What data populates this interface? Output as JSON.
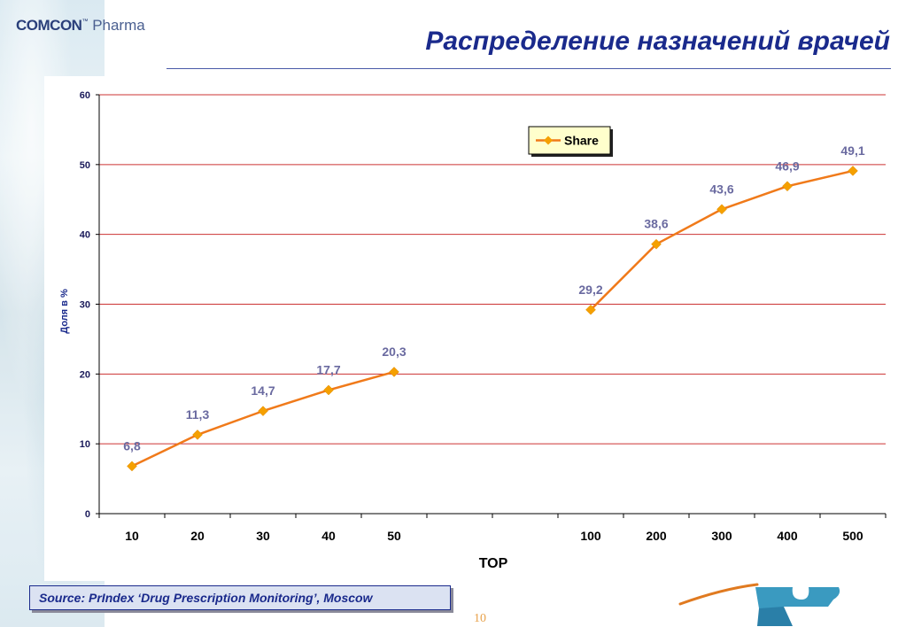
{
  "header": {
    "logo_brand": "COMCON",
    "logo_tm": "™",
    "logo_sub": "Pharma",
    "title": "Распределение назначений врачей"
  },
  "footer": {
    "source": "Source: PrIndex ‘Drug Prescription Monitoring’, Moscow",
    "page_number": "10"
  },
  "colors": {
    "title": "#1a2a8c",
    "series_line": "#f07a1a",
    "series_marker": "#f5a000",
    "gridline": "#cc3333",
    "data_label": "#6a6aa0"
  },
  "chart_data": {
    "type": "line",
    "title": "",
    "xlabel": "TOP",
    "ylabel": "Доля в %",
    "ylim": [
      0,
      60
    ],
    "yticks": [
      0,
      10,
      20,
      30,
      40,
      50,
      60
    ],
    "grid": true,
    "legend_position": "top-right",
    "categories": [
      "10",
      "20",
      "30",
      "40",
      "50",
      "",
      "",
      "100",
      "200",
      "300",
      "400",
      "500"
    ],
    "series": [
      {
        "name": "Share",
        "values": [
          6.8,
          11.3,
          14.7,
          17.7,
          20.3,
          null,
          null,
          29.2,
          38.6,
          43.6,
          46.9,
          49.1
        ],
        "labels": [
          "6,8",
          "11,3",
          "14,7",
          "17,7",
          "20,3",
          "",
          "",
          "29,2",
          "38,6",
          "43,6",
          "46,9",
          "49,1"
        ]
      }
    ]
  }
}
